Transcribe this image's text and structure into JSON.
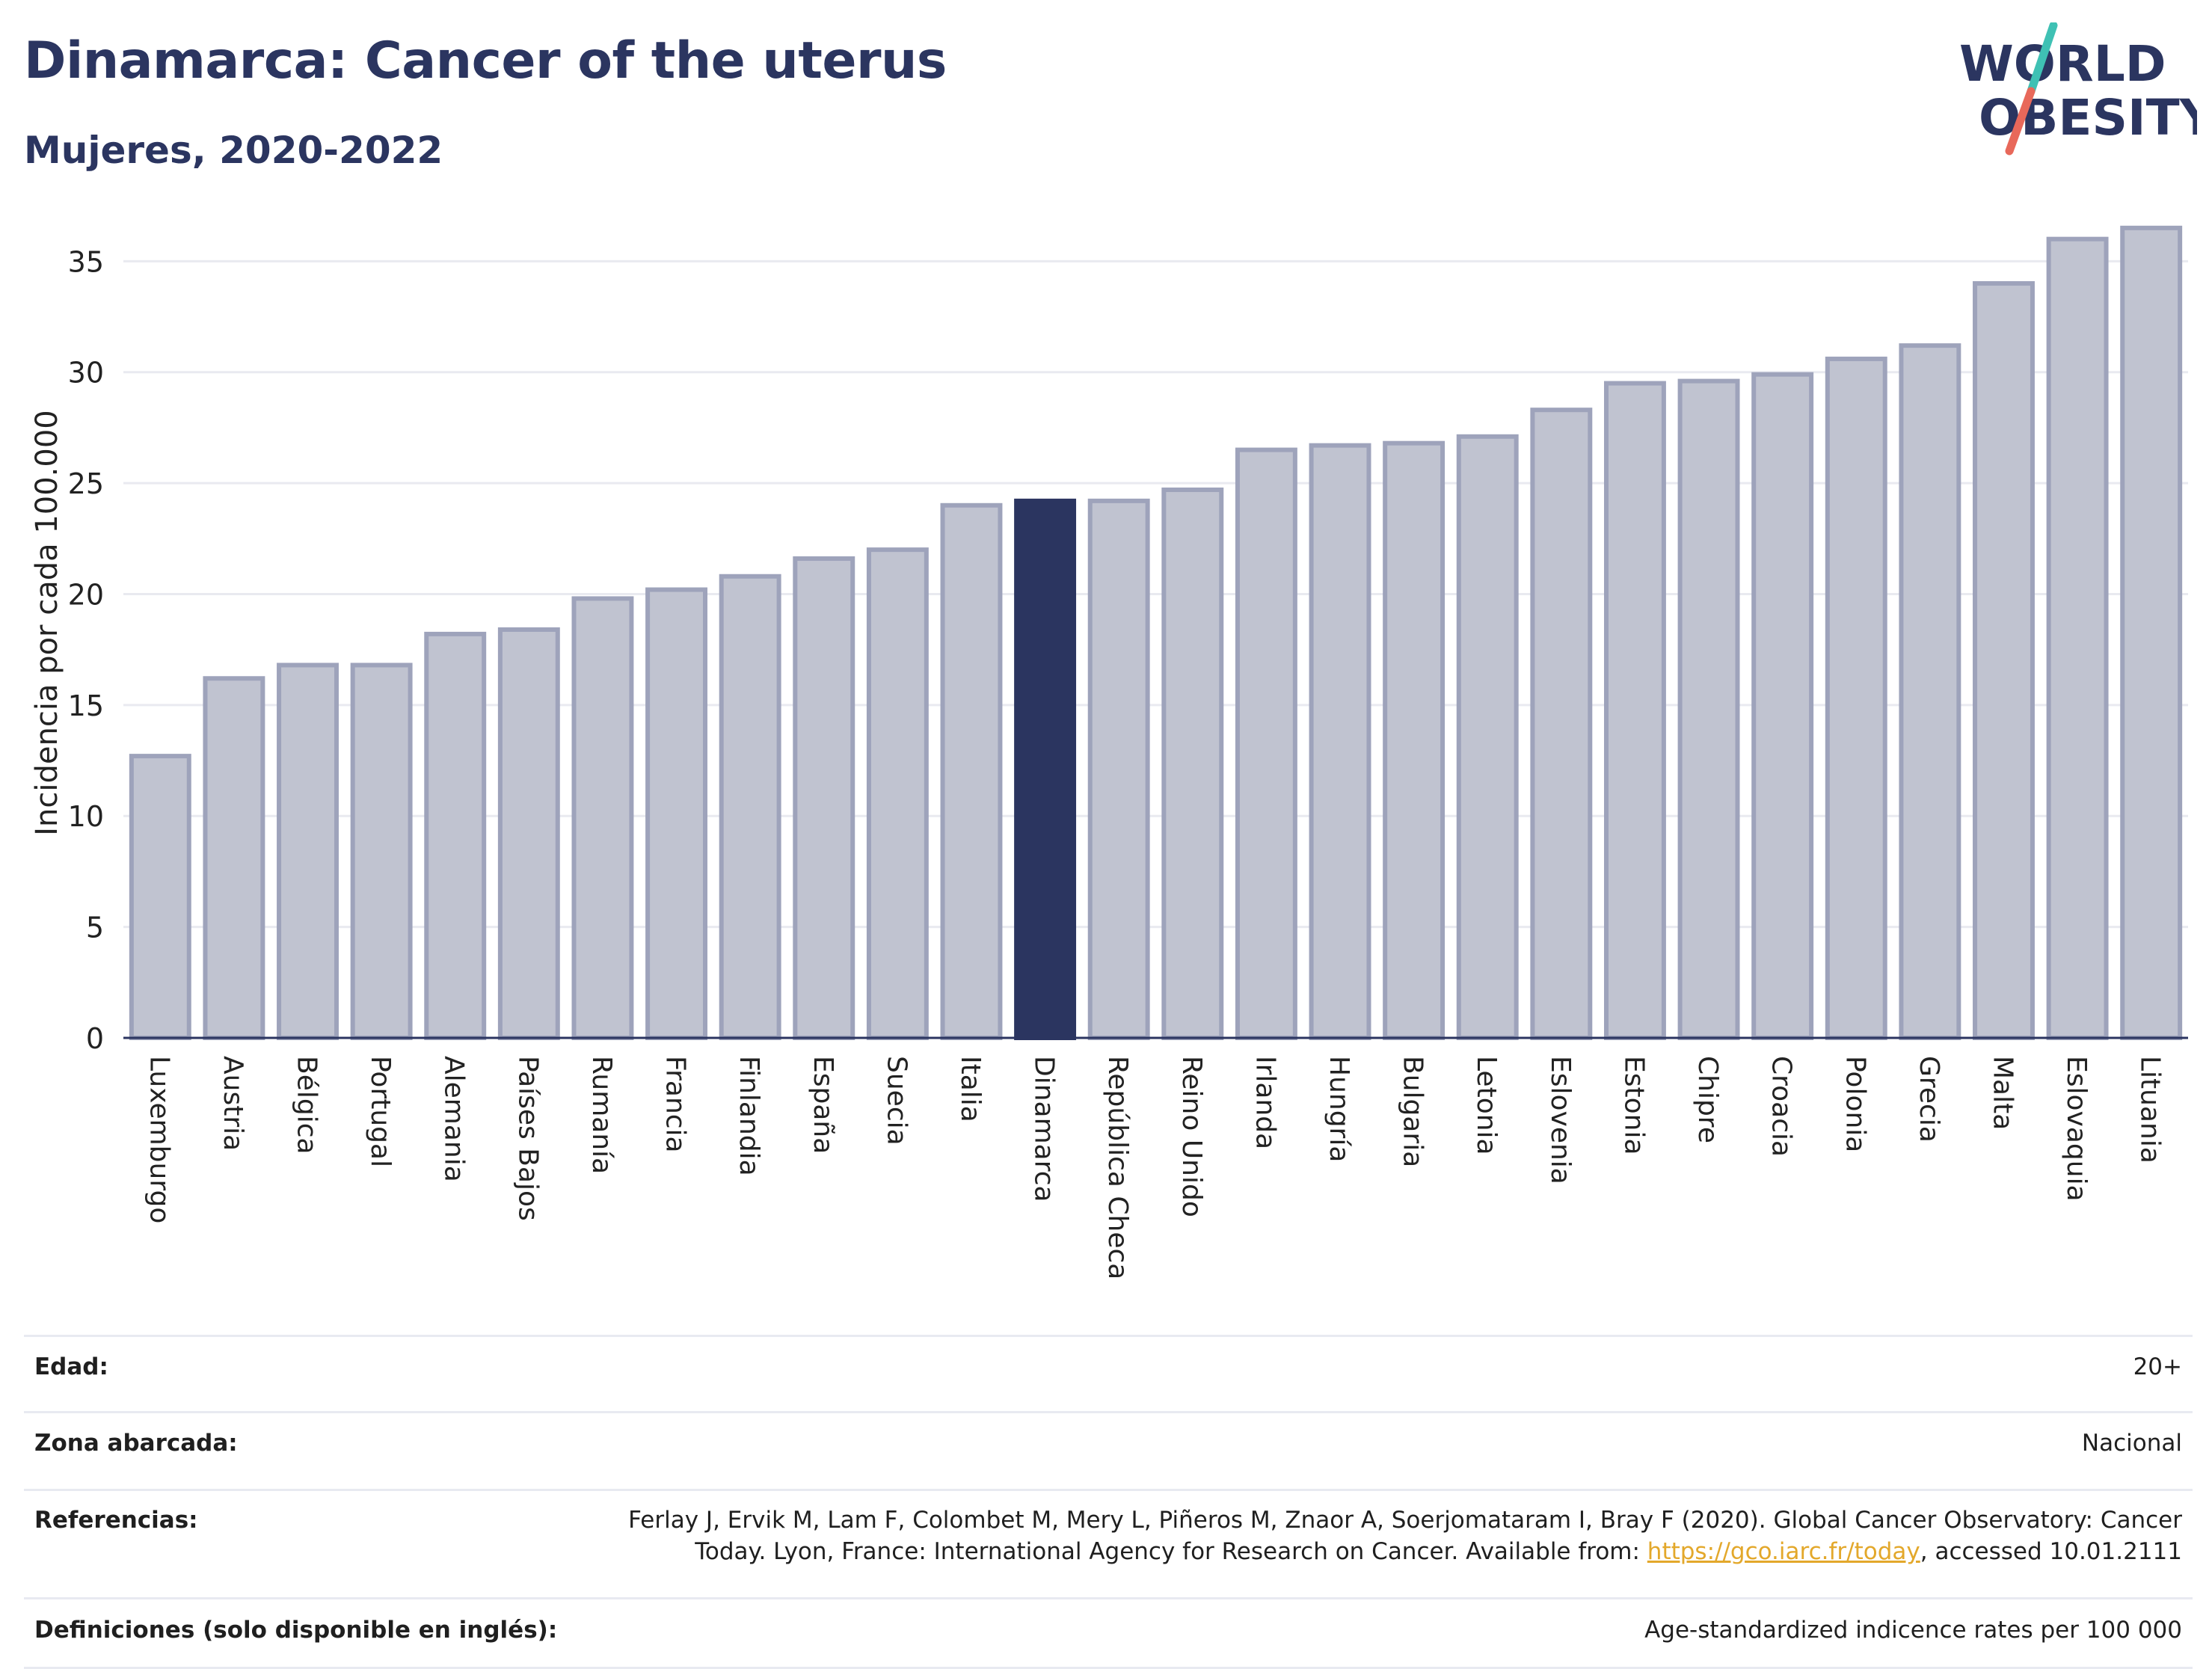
{
  "header": {
    "title": "Dinamarca: Cancer of the uterus",
    "subtitle": "Mujeres, 2020-2022"
  },
  "logo": {
    "line1": "WORLD",
    "line2": "OBESITY",
    "colors": {
      "text": "#2b3560",
      "slash_top": "#3fc1b4",
      "slash_bottom": "#e8685a"
    }
  },
  "colors": {
    "bar_fill": "#c0c3d0",
    "bar_stroke": "#9ea3bb",
    "highlight": "#2b3560",
    "grid": "#e9eaf0",
    "axis": "#2b3560"
  },
  "chart_data": {
    "type": "bar",
    "ylabel": "Incidencia por cada 100.000",
    "ylim": [
      0,
      37
    ],
    "yticks": [
      0,
      5,
      10,
      15,
      20,
      25,
      30,
      35
    ],
    "grid": true,
    "highlight": "Dinamarca",
    "categories": [
      "Luxemburgo",
      "Austria",
      "Bélgica",
      "Portugal",
      "Alemania",
      "Países Bajos",
      "Rumanía",
      "Francia",
      "Finlandia",
      "España",
      "Suecia",
      "Italia",
      "Dinamarca",
      "República Checa",
      "Reino Unido",
      "Irlanda",
      "Hungría",
      "Bulgaria",
      "Letonia",
      "Eslovenia",
      "Estonia",
      "Chipre",
      "Croacia",
      "Polonia",
      "Grecia",
      "Malta",
      "Eslovaquia",
      "Lituania"
    ],
    "values": [
      12.7,
      16.2,
      16.8,
      16.8,
      18.2,
      18.4,
      19.8,
      20.2,
      20.8,
      21.6,
      22.0,
      24.0,
      24.2,
      24.2,
      24.7,
      26.5,
      26.7,
      26.8,
      27.1,
      28.3,
      29.5,
      29.6,
      29.9,
      30.6,
      31.2,
      34.0,
      36.0,
      36.5
    ]
  },
  "info": {
    "rows": [
      {
        "label": "Edad:",
        "value": "20+"
      },
      {
        "label": "Zona abarcada:",
        "value": "Nacional"
      },
      {
        "label": "Referencias:",
        "value_line1": "Ferlay J, Ervik M, Lam F, Colombet M, Mery L, Piñeros M, Znaor A, Soerjomataram I, Bray F (2020). Global Cancer Observatory: Cancer",
        "value_pre": "Today. Lyon, France: International Agency for Research on Cancer. Available from: ",
        "link": "https://gco.iarc.fr/today",
        "value_post": ", accessed 10.01.2111"
      },
      {
        "label": "Definiciones (solo disponible en inglés):",
        "value": "Age-standardized indicence rates per 100 000"
      }
    ]
  }
}
